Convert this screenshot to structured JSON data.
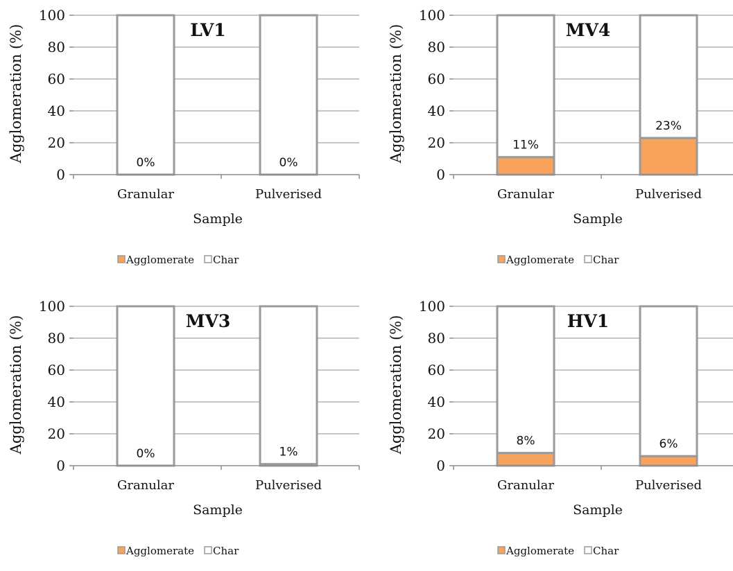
{
  "chart_data": [
    {
      "type": "bar",
      "stacked": true,
      "title": "LV1",
      "categories": [
        "Granular",
        "Pulverised"
      ],
      "series": [
        {
          "name": "Agglomerate",
          "values": [
            0,
            0
          ],
          "color": "#F7A35C"
        },
        {
          "name": "Char",
          "values": [
            100,
            100
          ],
          "color": "#FFFFFF"
        }
      ],
      "data_labels": [
        "0%",
        "0%"
      ],
      "xlabel": "Sample",
      "ylabel": "Agglomeration (%)",
      "ylim": [
        0,
        100
      ],
      "yticks": [
        0,
        20,
        40,
        60,
        80,
        100
      ],
      "grid": true,
      "legend": "bottom"
    },
    {
      "type": "bar",
      "stacked": true,
      "title": "MV4",
      "categories": [
        "Granular",
        "Pulverised"
      ],
      "series": [
        {
          "name": "Agglomerate",
          "values": [
            11,
            23
          ],
          "color": "#F7A35C"
        },
        {
          "name": "Char",
          "values": [
            89,
            77
          ],
          "color": "#FFFFFF"
        }
      ],
      "data_labels": [
        "11%",
        "23%"
      ],
      "xlabel": "Sample",
      "ylabel": "Agglomeration (%)",
      "ylim": [
        0,
        100
      ],
      "yticks": [
        0,
        20,
        40,
        60,
        80,
        100
      ],
      "grid": true,
      "legend": "bottom"
    },
    {
      "type": "bar",
      "stacked": true,
      "title": "MV3",
      "categories": [
        "Granular",
        "Pulverised"
      ],
      "series": [
        {
          "name": "Agglomerate",
          "values": [
            0,
            1
          ],
          "color": "#F7A35C"
        },
        {
          "name": "Char",
          "values": [
            100,
            99
          ],
          "color": "#FFFFFF"
        }
      ],
      "data_labels": [
        "0%",
        "1%"
      ],
      "xlabel": "Sample",
      "ylabel": "Agglomeration (%)",
      "ylim": [
        0,
        100
      ],
      "yticks": [
        0,
        20,
        40,
        60,
        80,
        100
      ],
      "grid": true,
      "legend": "bottom"
    },
    {
      "type": "bar",
      "stacked": true,
      "title": "HV1",
      "categories": [
        "Granular",
        "Pulverised"
      ],
      "series": [
        {
          "name": "Agglomerate",
          "values": [
            8,
            6
          ],
          "color": "#F7A35C"
        },
        {
          "name": "Char",
          "values": [
            92,
            94
          ],
          "color": "#FFFFFF"
        }
      ],
      "data_labels": [
        "8%",
        "6%"
      ],
      "xlabel": "Sample",
      "ylabel": "Agglomeration (%)",
      "ylim": [
        0,
        100
      ],
      "yticks": [
        0,
        20,
        40,
        60,
        80,
        100
      ],
      "grid": true,
      "legend": "bottom"
    }
  ],
  "colors": {
    "bar_outline": "#9A9A9A",
    "axis": "#8C8C8C",
    "grid": "#8C8C8C",
    "text": "#111111"
  }
}
